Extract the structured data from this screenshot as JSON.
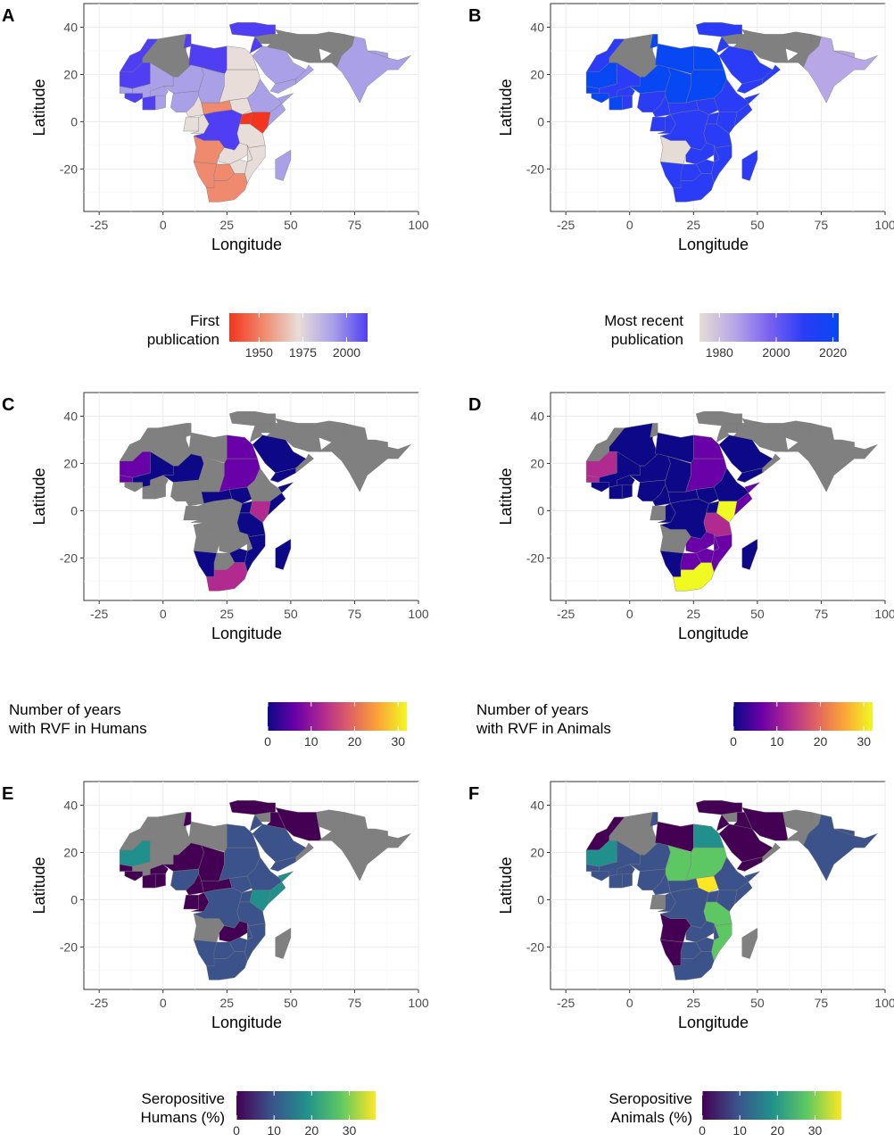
{
  "chart_data": [
    {
      "panel": "A",
      "type": "heatmap",
      "xlabel": "Longitude",
      "ylabel": "Latitude",
      "xticks": [
        "-25",
        "0",
        "25",
        "50",
        "75",
        "100"
      ],
      "yticks": [
        "40",
        "20",
        "0",
        "-20"
      ],
      "xlim": [
        -31,
        100
      ],
      "ylim": [
        -38,
        50
      ],
      "legend_title": [
        "First",
        "publication"
      ],
      "legend_ticks": [
        "1950",
        "1975",
        "2000"
      ],
      "legend_range": [
        1933,
        2012
      ],
      "colors": [
        "#f3341e",
        "#f08a6e",
        "#e8ddd8",
        "#a9a0e8",
        "#4f3ef2"
      ]
    },
    {
      "panel": "B",
      "type": "heatmap",
      "xlabel": "Longitude",
      "ylabel": "Latitude",
      "xticks": [
        "-25",
        "0",
        "25",
        "50",
        "75",
        "100"
      ],
      "yticks": [
        "40",
        "20",
        "0",
        "-20"
      ],
      "xlim": [
        -31,
        100
      ],
      "ylim": [
        -38,
        50
      ],
      "legend_title": [
        "Most recent",
        "publication"
      ],
      "legend_ticks": [
        "1980",
        "2000",
        "2020"
      ],
      "legend_range": [
        1973,
        2022
      ],
      "colors": [
        "#e6dcd6",
        "#b7a7e6",
        "#7a63f0",
        "#2a3cf6",
        "#0848f4"
      ]
    },
    {
      "panel": "C",
      "type": "heatmap",
      "xlabel": "Longitude",
      "ylabel": "Latitude",
      "xticks": [
        "-25",
        "0",
        "25",
        "50",
        "75",
        "100"
      ],
      "yticks": [
        "40",
        "20",
        "0",
        "-20"
      ],
      "xlim": [
        -31,
        100
      ],
      "ylim": [
        -38,
        50
      ],
      "legend_title": [
        "Number of years",
        "with RVF in Humans"
      ],
      "legend_ticks": [
        "0",
        "10",
        "20",
        "30"
      ],
      "legend_range": [
        0,
        32
      ],
      "colors": [
        "#0d0887",
        "#6a00a8",
        "#b12a90",
        "#e16462",
        "#fca636",
        "#f0f921"
      ]
    },
    {
      "panel": "D",
      "type": "heatmap",
      "xlabel": "Longitude",
      "ylabel": "Latitude",
      "xticks": [
        "-25",
        "0",
        "25",
        "50",
        "75",
        "100"
      ],
      "yticks": [
        "40",
        "20",
        "0",
        "-20"
      ],
      "xlim": [
        -31,
        100
      ],
      "ylim": [
        -38,
        50
      ],
      "legend_title": [
        "Number of years",
        "with RVF in Animals"
      ],
      "legend_ticks": [
        "0",
        "10",
        "20",
        "30"
      ],
      "legend_range": [
        0,
        32
      ],
      "colors": [
        "#0d0887",
        "#6a00a8",
        "#b12a90",
        "#e16462",
        "#fca636",
        "#f0f921"
      ]
    },
    {
      "panel": "E",
      "type": "heatmap",
      "xlabel": "Longitude",
      "ylabel": "Latitude",
      "xticks": [
        "-25",
        "0",
        "25",
        "50",
        "75",
        "100"
      ],
      "yticks": [
        "40",
        "20",
        "0",
        "-20"
      ],
      "xlim": [
        -31,
        100
      ],
      "ylim": [
        -38,
        50
      ],
      "legend_title": [
        "Seropositive",
        "Humans (%)"
      ],
      "legend_ticks": [
        "0",
        "10",
        "20",
        "30"
      ],
      "legend_range": [
        0,
        37
      ],
      "colors": [
        "#440154",
        "#3b528b",
        "#21908c",
        "#5dc863",
        "#fde725"
      ]
    },
    {
      "panel": "F",
      "type": "heatmap",
      "xlabel": "Longitude",
      "ylabel": "Latitude",
      "xticks": [
        "-25",
        "0",
        "25",
        "50",
        "75",
        "100"
      ],
      "yticks": [
        "40",
        "20",
        "0",
        "-20"
      ],
      "xlim": [
        -31,
        100
      ],
      "ylim": [
        -38,
        50
      ],
      "legend_title": [
        "Seropositive",
        "Animals (%)"
      ],
      "legend_ticks": [
        "0",
        "10",
        "20",
        "30"
      ],
      "legend_range": [
        0,
        37
      ],
      "colors": [
        "#440154",
        "#3b528b",
        "#21908c",
        "#5dc863",
        "#fde725"
      ]
    }
  ]
}
